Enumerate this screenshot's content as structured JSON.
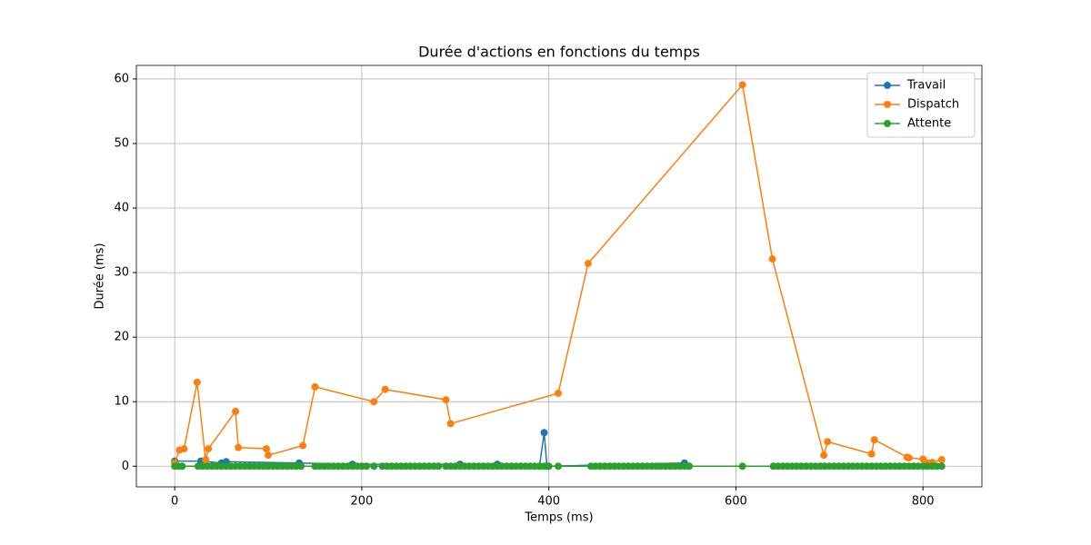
{
  "chart_data": {
    "type": "line",
    "title": "Durée d'actions en fonctions du temps",
    "xlabel": "Temps (ms)",
    "ylabel": "Durée (ms)",
    "xlim": [
      -41,
      863
    ],
    "ylim": [
      -3.2,
      62.1
    ],
    "xticks": [
      0,
      200,
      400,
      600,
      800
    ],
    "yticks": [
      0,
      10,
      20,
      30,
      40,
      50,
      60
    ],
    "grid": true,
    "legend": "upper right",
    "series": [
      {
        "name": "Travail",
        "color": "#1f77b4",
        "x": [
          0,
          28,
          50,
          55,
          133,
          190,
          305,
          345,
          390,
          395,
          398,
          545,
          550
        ],
        "values": [
          0.8,
          0.8,
          0.5,
          0.7,
          0.5,
          0.3,
          0.3,
          0.3,
          0,
          5.2,
          0,
          0.5,
          0
        ]
      },
      {
        "name": "Dispatch",
        "color": "#ff7f0e",
        "x": [
          0,
          5,
          10,
          24,
          33,
          36,
          65,
          68,
          98,
          100,
          137,
          150,
          213,
          225,
          290,
          295,
          410,
          442,
          607,
          639,
          694,
          698,
          745,
          748,
          783,
          785,
          800,
          805,
          810,
          820
        ],
        "values": [
          0.5,
          2.5,
          2.7,
          13,
          1,
          2.7,
          8.5,
          2.9,
          2.7,
          1.7,
          3.2,
          12.3,
          10,
          11.9,
          10.3,
          6.6,
          11.3,
          31.4,
          59.1,
          32.1,
          1.7,
          3.8,
          1.9,
          4.1,
          1.4,
          1.3,
          1.1,
          0.5,
          0.6,
          1.0
        ]
      },
      {
        "name": "Attente",
        "color": "#2ca02c",
        "x": [
          0,
          4,
          8,
          25,
          30,
          35,
          40,
          45,
          50,
          55,
          60,
          65,
          70,
          75,
          80,
          85,
          90,
          95,
          100,
          105,
          110,
          115,
          120,
          125,
          130,
          135,
          150,
          155,
          160,
          165,
          170,
          175,
          180,
          185,
          190,
          195,
          200,
          205,
          213,
          222,
          227,
          232,
          237,
          242,
          247,
          252,
          257,
          262,
          267,
          272,
          277,
          282,
          290,
          295,
          300,
          305,
          310,
          315,
          320,
          325,
          330,
          335,
          340,
          345,
          350,
          355,
          360,
          365,
          370,
          375,
          380,
          385,
          390,
          395,
          400,
          410,
          445,
          450,
          455,
          460,
          465,
          470,
          475,
          480,
          485,
          490,
          495,
          500,
          505,
          510,
          515,
          520,
          525,
          530,
          535,
          540,
          545,
          550,
          607,
          640,
          645,
          650,
          655,
          660,
          665,
          670,
          675,
          680,
          685,
          690,
          695,
          700,
          705,
          710,
          715,
          720,
          725,
          730,
          735,
          740,
          745,
          750,
          755,
          760,
          765,
          770,
          775,
          780,
          785,
          790,
          795,
          800,
          805,
          810,
          815,
          820
        ],
        "values": [
          0,
          0,
          0,
          0,
          0,
          0,
          0,
          0,
          0,
          0,
          0,
          0,
          0,
          0,
          0,
          0,
          0,
          0,
          0,
          0,
          0,
          0,
          0,
          0,
          0,
          0,
          0,
          0,
          0,
          0,
          0,
          0,
          0,
          0,
          0,
          0,
          0,
          0,
          0,
          0,
          0,
          0,
          0,
          0,
          0,
          0,
          0,
          0,
          0,
          0,
          0,
          0,
          0,
          0,
          0,
          0,
          0,
          0,
          0,
          0,
          0,
          0,
          0,
          0,
          0,
          0,
          0,
          0,
          0,
          0,
          0,
          0,
          0,
          0,
          0,
          0,
          0,
          0,
          0,
          0,
          0,
          0,
          0,
          0,
          0,
          0,
          0,
          0,
          0,
          0,
          0,
          0,
          0,
          0,
          0,
          0,
          0,
          0,
          0,
          0,
          0,
          0,
          0,
          0,
          0,
          0,
          0,
          0,
          0,
          0,
          0,
          0,
          0,
          0,
          0,
          0,
          0,
          0,
          0,
          0,
          0,
          0,
          0,
          0,
          0,
          0,
          0,
          0,
          0,
          0,
          0,
          0,
          0,
          0,
          0,
          0
        ]
      }
    ]
  }
}
